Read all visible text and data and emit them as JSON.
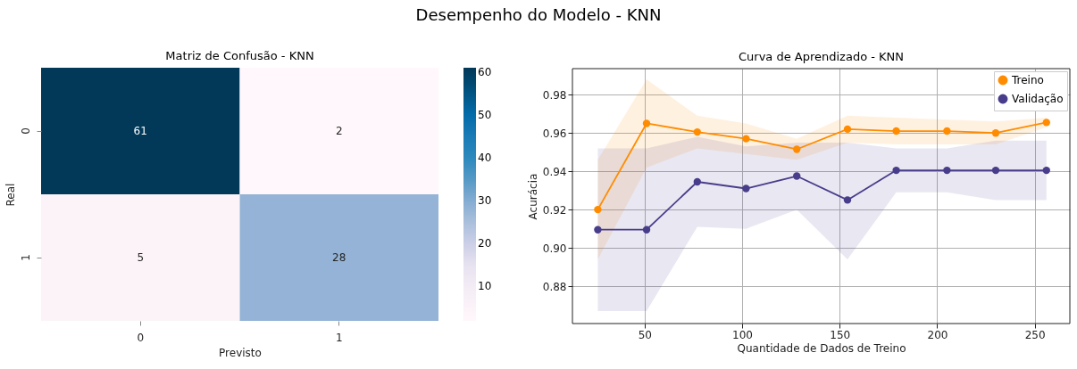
{
  "chart_data": [
    {
      "type": "heatmap",
      "title": "Matriz de Confusão - KNN",
      "annotations": [
        "Desempenho do Modelo - KNN"
      ],
      "xlabel": "Previsto",
      "ylabel": "Real",
      "categories": [
        "0",
        "1"
      ],
      "y_categories": [
        "0",
        "1"
      ],
      "cells": [
        [
          61,
          2
        ],
        [
          5,
          28
        ]
      ],
      "data_labels": true,
      "clim": [
        2,
        61
      ],
      "cticks": [
        10,
        20,
        30,
        40,
        50,
        60
      ]
    },
    {
      "type": "line",
      "title": "Curva de Aprendizado - KNN",
      "xlabel": "Quantidade de Dados de Treino",
      "ylabel": "Acurácia",
      "xlim": [
        13,
        268
      ],
      "ylim": [
        0.8605,
        0.9936
      ],
      "xticks": [
        50,
        100,
        150,
        200,
        250
      ],
      "yticks": [
        0.88,
        {
          "value": 0.9,
          "label": "0.90"
        },
        0.92,
        0.94,
        0.96,
        0.98
      ],
      "grid": true,
      "legend": "top right",
      "marker": "circle",
      "line_style": "solid",
      "x": [
        26,
        51,
        77,
        102,
        128,
        154,
        179,
        205,
        230,
        256
      ],
      "series": [
        {
          "name": "Treino",
          "color": "#ff8c00",
          "values": [
            0.92,
            0.965,
            0.9605,
            0.957,
            0.9515,
            0.962,
            0.961,
            0.961,
            0.96,
            0.9655
          ],
          "lower": [
            0.894,
            0.942,
            0.952,
            0.949,
            0.946,
            0.955,
            0.954,
            0.954,
            0.954,
            0.963
          ],
          "upper": [
            0.946,
            0.988,
            0.969,
            0.965,
            0.957,
            0.969,
            0.968,
            0.967,
            0.966,
            0.968
          ]
        },
        {
          "name": "Validação",
          "color": "#483d8b",
          "values": [
            0.9095,
            0.9095,
            0.9345,
            0.931,
            0.9375,
            0.925,
            0.9405,
            0.9405,
            0.9405,
            0.9405
          ],
          "lower": [
            0.867,
            0.867,
            0.911,
            0.91,
            0.92,
            0.894,
            0.929,
            0.929,
            0.925,
            0.925
          ],
          "upper": [
            0.952,
            0.952,
            0.958,
            0.953,
            0.955,
            0.955,
            0.952,
            0.952,
            0.956,
            0.956
          ]
        }
      ]
    }
  ]
}
